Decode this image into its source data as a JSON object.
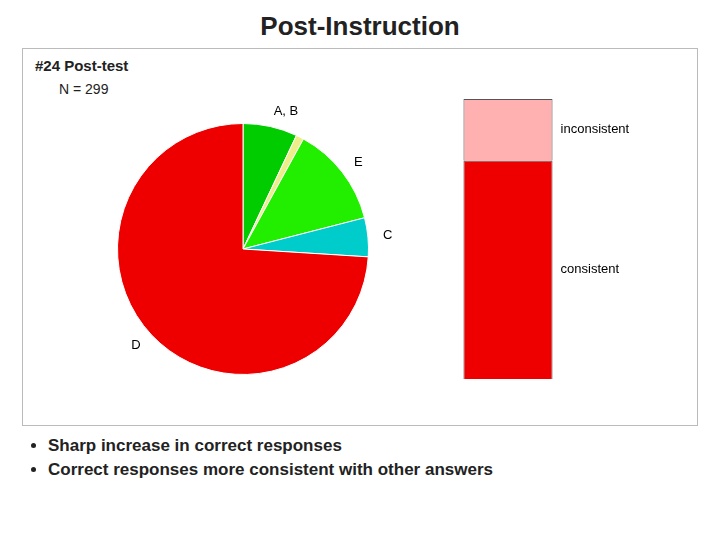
{
  "chart_data": [
    {
      "type": "pie",
      "title": "Post-Instruction",
      "subtitle": "#24 Post-test",
      "annotations": [
        "N = 299",
        "Sharp increase in correct responses",
        "Correct responses more consistent with other answers"
      ],
      "categories": [
        "A, B",
        null,
        "E",
        "C",
        "D"
      ],
      "values": [
        7,
        1,
        13,
        5,
        74
      ],
      "colors": [
        "#00CC00",
        "#EEEE88",
        "#22EE00",
        "#00CCCC",
        "#EE0000"
      ]
    },
    {
      "type": "bar",
      "stacked": true,
      "categories": [
        null
      ],
      "series": [
        {
          "name": "consistent",
          "color": "#EE0000",
          "values": [
            0.78
          ]
        },
        {
          "name": "inconsistent",
          "color": "#FFB0B0",
          "values": [
            0.22
          ]
        }
      ],
      "ylim": [
        0,
        1
      ],
      "grid": false,
      "tick_labels": false
    }
  ]
}
